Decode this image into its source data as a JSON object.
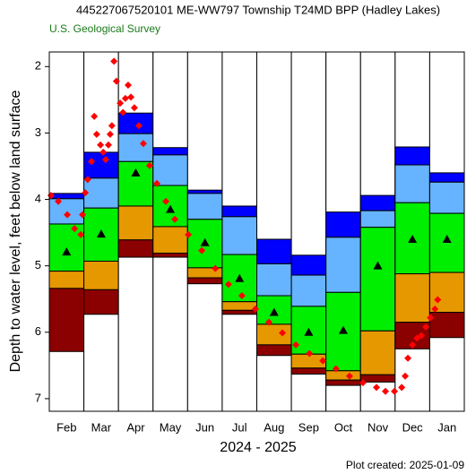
{
  "chart_data": {
    "type": "box",
    "title": "445227067520101 ME-WW797 Township T24MD BPP (Hadley Lakes)",
    "subtitle": "U.S. Geological Survey",
    "ylabel": "Depth to water level, feet below land surface",
    "xlabel": "2024 - 2025",
    "footer": "Plot created: 2025-01-09",
    "categories": [
      "Feb",
      "Mar",
      "Apr",
      "May",
      "Jun",
      "Jul",
      "Aug",
      "Sep",
      "Oct",
      "Nov",
      "Dec",
      "Jan"
    ],
    "ylim": [
      1.78,
      7.19
    ],
    "y_inverted": true,
    "yticks": [
      2,
      3,
      4,
      5,
      6,
      7
    ],
    "xlim": [
      0,
      12
    ],
    "series": [
      {
        "color": "#0000ff",
        "values": [
          3.91,
          3.29,
          2.7,
          3.22,
          3.86,
          4.1,
          4.6,
          4.84,
          4.19,
          3.94,
          3.21,
          3.6
        ]
      },
      {
        "color": "#66b3ff",
        "values": [
          3.99,
          3.68,
          3.01,
          3.33,
          3.91,
          4.26,
          4.97,
          5.14,
          4.57,
          4.17,
          3.48,
          3.74
        ]
      },
      {
        "color": "#00ee00",
        "values": [
          4.37,
          4.13,
          3.43,
          3.79,
          4.3,
          4.83,
          5.45,
          5.61,
          5.4,
          4.42,
          4.05,
          4.21
        ]
      },
      {
        "color": "#e69800",
        "values": [
          5.08,
          4.93,
          4.1,
          4.41,
          5.03,
          5.54,
          5.88,
          6.33,
          6.58,
          5.98,
          5.12,
          5.1
        ]
      },
      {
        "color": "#8b0000",
        "values": [
          5.34,
          5.36,
          4.61,
          4.81,
          5.18,
          5.67,
          6.19,
          6.54,
          6.72,
          6.64,
          5.85,
          5.7
        ]
      }
    ],
    "lows": [
      6.29,
      5.73,
      4.87,
      4.87,
      5.27,
      5.73,
      6.35,
      6.63,
      6.8,
      6.75,
      6.25,
      6.08
    ],
    "median": {
      "color": "#000000",
      "values": [
        4.79,
        4.52,
        3.6,
        4.15,
        4.65,
        5.19,
        5.7,
        6.0,
        5.97,
        5.0,
        4.6,
        4.6
      ]
    },
    "measurements": {
      "color": "#ff0000",
      "x": [
        0.05,
        0.26,
        0.52,
        0.73,
        0.91,
        0.96,
        1.04,
        1.11,
        1.22,
        1.3,
        1.37,
        1.48,
        1.56,
        1.63,
        1.71,
        1.76,
        1.81,
        1.87,
        1.94,
        2.05,
        2.13,
        2.2,
        2.28,
        2.36,
        2.46,
        2.59,
        2.72,
        2.9,
        3.11,
        3.37,
        3.63,
        4.02,
        4.41,
        4.8,
        5.18,
        5.57,
        5.96,
        6.35,
        6.74,
        7.13,
        7.52,
        7.91,
        8.29,
        8.68,
        9.07,
        9.46,
        9.72,
        9.98,
        10.19,
        10.29,
        10.37,
        10.5,
        10.63,
        10.76,
        10.89,
        11.02,
        11.15,
        11.23
      ],
      "values": [
        3.94,
        4.03,
        4.23,
        4.44,
        4.53,
        4.23,
        3.9,
        3.7,
        3.43,
        2.75,
        3.02,
        3.18,
        3.29,
        3.4,
        3.18,
        3.02,
        2.89,
        1.92,
        2.22,
        2.55,
        2.69,
        2.48,
        2.28,
        2.46,
        2.62,
        2.89,
        3.16,
        3.49,
        3.76,
        4.03,
        4.3,
        4.53,
        4.77,
        5.04,
        5.28,
        5.45,
        5.65,
        5.85,
        6.01,
        6.19,
        6.32,
        6.43,
        6.55,
        6.66,
        6.76,
        6.83,
        6.89,
        6.89,
        6.83,
        6.66,
        6.39,
        6.19,
        6.09,
        6.05,
        5.92,
        5.78,
        5.65,
        5.51
      ]
    }
  }
}
